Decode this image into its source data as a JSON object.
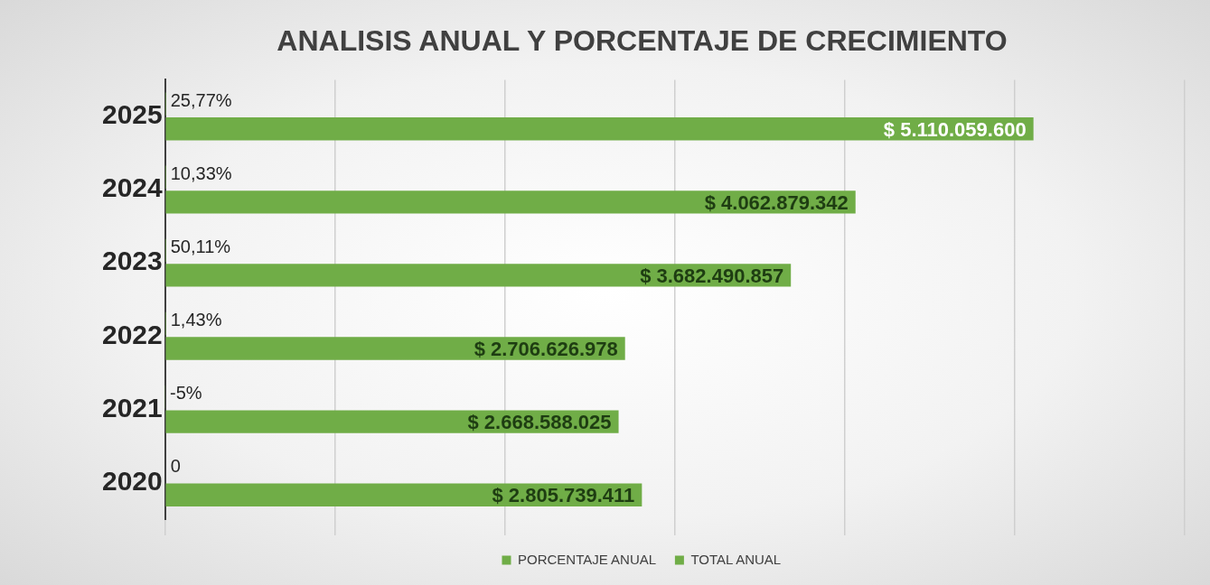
{
  "chart_data": {
    "type": "bar",
    "orientation": "horizontal",
    "title": "ANALISIS ANUAL Y PORCENTAJE DE CRECIMIENTO",
    "categories": [
      "2025",
      "2024",
      "2023",
      "2022",
      "2021",
      "2020"
    ],
    "series": [
      {
        "name": "PORCENTAJE ANUAL",
        "color": "#70ad47",
        "values": [
          25.77,
          10.33,
          50.11,
          1.43,
          -5,
          0
        ],
        "value_labels": [
          "25,77%",
          "10,33%",
          "50,11%",
          "1,43%",
          "-5%",
          "0"
        ]
      },
      {
        "name": "TOTAL ANUAL",
        "color": "#70ad47",
        "values": [
          5110059600,
          4062879342,
          3682490857,
          2706626978,
          2668588025,
          2805739411
        ],
        "value_labels": [
          "$ 5.110.059.600",
          "$ 4.062.879.342",
          "$ 3.682.490.857",
          "$ 2.706.626.978",
          "$ 2.668.588.025",
          "$ 2.805.739.411"
        ]
      }
    ],
    "xlim": [
      -5,
      6000000000
    ],
    "xticks": [
      {
        "value": 0,
        "label": null
      },
      {
        "value": 1000000000,
        "label": null
      },
      {
        "value": 2000000000,
        "label": null
      },
      {
        "value": 3000000000,
        "label": null
      },
      {
        "value": 4000000000,
        "label": null
      },
      {
        "value": 5000000000,
        "label": null
      },
      {
        "value": 6000000000,
        "label": null
      }
    ],
    "tick_labels": "y",
    "grid": "x",
    "legend": "bottom"
  }
}
